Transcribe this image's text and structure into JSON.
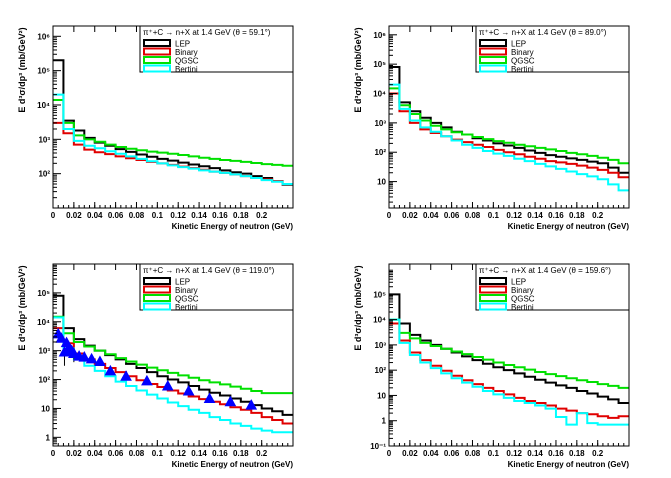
{
  "chart_data": [
    {
      "type": "line",
      "step": true,
      "title": "π⁺+C → n+X at 1.4 GeV (θ = 59.1°)",
      "xlabel": "Kinetic Energy of neutron (GeV)",
      "ylabel": "E d³σ/dp³ (mb/GeV²)",
      "log_y": true,
      "xlim": [
        0,
        0.23
      ],
      "ylim_exp": [
        1,
        6.3
      ],
      "x_ticks": [
        "0",
        "0.02",
        "0.04",
        "0.06",
        "0.08",
        "0.1",
        "0.12",
        "0.14",
        "0.16",
        "0.18",
        "0.2"
      ],
      "x_tick_values": [
        0,
        0.02,
        0.04,
        0.06,
        0.08,
        0.1,
        0.12,
        0.14,
        0.16,
        0.18,
        0.2
      ],
      "y_ticks": [
        "10²",
        "10³",
        "10⁴",
        "10⁵",
        "10⁶"
      ],
      "y_tick_exps": [
        2,
        3,
        4,
        5,
        6
      ],
      "bin_edges": [
        0,
        0.01,
        0.02,
        0.03,
        0.04,
        0.05,
        0.06,
        0.07,
        0.08,
        0.09,
        0.1,
        0.11,
        0.12,
        0.13,
        0.14,
        0.15,
        0.16,
        0.17,
        0.18,
        0.19,
        0.2,
        0.21,
        0.22,
        0.23
      ],
      "series": [
        {
          "name": "LEP",
          "color": "#000000",
          "values": [
            200000,
            3500,
            1800,
            1100,
            800,
            650,
            520,
            430,
            360,
            310,
            270,
            240,
            210,
            185,
            165,
            145,
            125,
            110,
            100,
            85,
            75,
            60,
            48
          ]
        },
        {
          "name": "Binary",
          "color": "#e00000",
          "values": [
            3000,
            1500,
            700,
            500,
            420,
            370,
            320,
            280,
            250,
            220,
            200,
            180,
            160,
            145,
            130,
            115,
            105,
            95,
            85,
            75,
            68,
            60,
            50
          ]
        },
        {
          "name": "QGSC",
          "color": "#00e000",
          "values": [
            14000,
            3000,
            1300,
            1000,
            850,
            700,
            600,
            530,
            480,
            440,
            410,
            380,
            350,
            320,
            290,
            270,
            250,
            235,
            220,
            205,
            190,
            180,
            170
          ]
        },
        {
          "name": "Bertini",
          "color": "#00ffff",
          "values": [
            20000,
            2000,
            900,
            650,
            550,
            450,
            380,
            320,
            270,
            230,
            200,
            175,
            155,
            140,
            125,
            115,
            105,
            95,
            85,
            75,
            65,
            58,
            50
          ]
        }
      ]
    },
    {
      "type": "line",
      "step": true,
      "title": "π⁺+C → n+X at 1.4 GeV (θ = 89.0°)",
      "xlabel": "Kinetic Energy of neutron (GeV)",
      "ylabel": "E d³σ/dp³ (mb/GeV²)",
      "log_y": true,
      "xlim": [
        0,
        0.23
      ],
      "ylim_exp": [
        0.1,
        6.3
      ],
      "x_ticks": [
        "0",
        "0.02",
        "0.04",
        "0.06",
        "0.08",
        "0.1",
        "0.12",
        "0.14",
        "0.16",
        "0.18",
        "0.2"
      ],
      "x_tick_values": [
        0,
        0.02,
        0.04,
        0.06,
        0.08,
        0.1,
        0.12,
        0.14,
        0.16,
        0.18,
        0.2
      ],
      "y_ticks": [
        "10",
        "10²",
        "10³",
        "10⁴",
        "10⁵",
        "10⁶"
      ],
      "y_tick_exps": [
        1,
        2,
        3,
        4,
        5,
        6
      ],
      "bin_edges": [
        0,
        0.01,
        0.02,
        0.03,
        0.04,
        0.05,
        0.06,
        0.07,
        0.08,
        0.09,
        0.1,
        0.11,
        0.12,
        0.13,
        0.14,
        0.15,
        0.16,
        0.17,
        0.18,
        0.19,
        0.2,
        0.21,
        0.22,
        0.23
      ],
      "series": [
        {
          "name": "LEP",
          "color": "#000000",
          "values": [
            80000,
            5000,
            2500,
            1500,
            1000,
            700,
            500,
            400,
            300,
            250,
            200,
            170,
            140,
            115,
            95,
            80,
            70,
            62,
            55,
            48,
            42,
            30,
            20
          ]
        },
        {
          "name": "Binary",
          "color": "#e00000",
          "values": [
            10000,
            2500,
            1000,
            600,
            450,
            350,
            270,
            220,
            180,
            150,
            120,
            100,
            85,
            70,
            60,
            50,
            45,
            40,
            35,
            30,
            25,
            20,
            14
          ]
        },
        {
          "name": "QGSC",
          "color": "#00e000",
          "values": [
            15000,
            4000,
            2000,
            1200,
            800,
            600,
            480,
            400,
            330,
            280,
            240,
            210,
            180,
            160,
            140,
            125,
            110,
            95,
            85,
            75,
            65,
            55,
            42
          ]
        },
        {
          "name": "Bertini",
          "color": "#00ffff",
          "values": [
            20000,
            3000,
            1200,
            700,
            500,
            350,
            250,
            180,
            140,
            110,
            90,
            75,
            60,
            50,
            40,
            33,
            27,
            22,
            18,
            15,
            12,
            8,
            5
          ]
        }
      ]
    },
    {
      "type": "line",
      "step": true,
      "title": "π⁺+C → n+X at 1.4 GeV (θ = 119.0°)",
      "xlabel": "Kinetic Energy of neutron (GeV)",
      "ylabel": "E d³σ/dp³ (mb/GeV²)",
      "log_y": true,
      "xlim": [
        0,
        0.23
      ],
      "ylim_exp": [
        -0.3,
        6.0
      ],
      "x_ticks": [
        "0",
        "0.02",
        "0.04",
        "0.06",
        "0.08",
        "0.1",
        "0.12",
        "0.14",
        "0.16",
        "0.18",
        "0.2"
      ],
      "x_tick_values": [
        0,
        0.02,
        0.04,
        0.06,
        0.08,
        0.1,
        0.12,
        0.14,
        0.16,
        0.18,
        0.2
      ],
      "y_ticks": [
        "1",
        "10",
        "10²",
        "10³",
        "10⁴",
        "10⁵"
      ],
      "y_tick_exps": [
        0,
        1,
        2,
        3,
        4,
        5
      ],
      "bin_edges": [
        0,
        0.01,
        0.02,
        0.03,
        0.04,
        0.05,
        0.06,
        0.07,
        0.08,
        0.09,
        0.1,
        0.11,
        0.12,
        0.13,
        0.14,
        0.15,
        0.16,
        0.17,
        0.18,
        0.19,
        0.2,
        0.21,
        0.22,
        0.23
      ],
      "series": [
        {
          "name": "LEP",
          "color": "#000000",
          "values": [
            80000,
            6000,
            2500,
            1500,
            1000,
            700,
            500,
            350,
            250,
            180,
            130,
            100,
            80,
            60,
            45,
            35,
            28,
            22,
            17,
            13,
            10,
            8,
            6
          ]
        },
        {
          "name": "Binary",
          "color": "#e00000",
          "values": [
            6000,
            1800,
            800,
            500,
            350,
            250,
            180,
            130,
            95,
            70,
            55,
            42,
            33,
            26,
            21,
            17,
            14,
            11,
            9,
            7,
            5,
            4,
            3
          ]
        },
        {
          "name": "QGSC",
          "color": "#00e000",
          "values": [
            15000,
            4000,
            2000,
            1400,
            1000,
            750,
            550,
            420,
            330,
            260,
            210,
            170,
            140,
            115,
            95,
            80,
            68,
            57,
            48,
            40,
            34,
            34,
            34
          ]
        },
        {
          "name": "Bertini",
          "color": "#00ffff",
          "values": [
            14000,
            1200,
            500,
            300,
            200,
            130,
            85,
            60,
            42,
            30,
            22,
            16,
            12,
            9,
            7,
            5,
            4,
            3,
            2.5,
            2,
            1.7,
            1.5,
            1.5
          ]
        }
      ],
      "markers": {
        "shape": "triangle",
        "color": "#0000ff",
        "x": [
          0.005,
          0.008,
          0.011,
          0.013,
          0.015,
          0.018,
          0.02,
          0.025,
          0.03,
          0.037,
          0.045,
          0.055,
          0.07,
          0.09,
          0.11,
          0.13,
          0.15,
          0.17,
          0.19
        ],
        "y": [
          3800,
          2700,
          900,
          1900,
          1200,
          1000,
          800,
          650,
          600,
          520,
          420,
          200,
          130,
          90,
          60,
          40,
          22,
          17,
          13
        ],
        "err_low": [
          null,
          null,
          300,
          null,
          null,
          null,
          400,
          null,
          null,
          null,
          null,
          null,
          null,
          null,
          null,
          null,
          null,
          null,
          null
        ],
        "err_high": [
          null,
          null,
          2000,
          null,
          null,
          null,
          null,
          null,
          null,
          null,
          null,
          null,
          null,
          null,
          null,
          null,
          null,
          null,
          null
        ]
      }
    },
    {
      "type": "line",
      "step": true,
      "title": "π⁺+C → n+X at 1.4 GeV (θ = 159.6°)",
      "xlabel": "Kinetic Energy of neutron (GeV)",
      "ylabel": "E d³σ/dp³ (mb/GeV²)",
      "log_y": true,
      "xlim": [
        0,
        0.23
      ],
      "ylim_exp": [
        -1,
        6.2
      ],
      "x_ticks": [
        "0",
        "0.02",
        "0.04",
        "0.06",
        "0.08",
        "0.1",
        "0.12",
        "0.14",
        "0.16",
        "0.18",
        "0.2"
      ],
      "x_tick_values": [
        0,
        0.02,
        0.04,
        0.06,
        0.08,
        0.1,
        0.12,
        0.14,
        0.16,
        0.18,
        0.2
      ],
      "y_ticks": [
        "10⁻¹",
        "1",
        "10",
        "10²",
        "10³",
        "10⁴",
        "10⁵"
      ],
      "y_tick_exps": [
        -1,
        0,
        1,
        2,
        3,
        4,
        5
      ],
      "bin_edges": [
        0,
        0.01,
        0.02,
        0.03,
        0.04,
        0.05,
        0.06,
        0.07,
        0.08,
        0.09,
        0.1,
        0.11,
        0.12,
        0.13,
        0.14,
        0.15,
        0.16,
        0.17,
        0.18,
        0.19,
        0.2,
        0.21,
        0.22,
        0.23
      ],
      "series": [
        {
          "name": "LEP",
          "color": "#000000",
          "values": [
            100000,
            7000,
            2500,
            1500,
            1000,
            700,
            500,
            350,
            250,
            180,
            130,
            100,
            75,
            55,
            42,
            32,
            25,
            20,
            15,
            12,
            9,
            7,
            5
          ]
        },
        {
          "name": "Binary",
          "color": "#e00000",
          "values": [
            7000,
            1500,
            500,
            250,
            150,
            95,
            60,
            40,
            28,
            20,
            15,
            11,
            8,
            6,
            5,
            4,
            3,
            2.5,
            2,
            1.8,
            1.5,
            1.3,
            1.5
          ]
        },
        {
          "name": "QGSC",
          "color": "#00e000",
          "values": [
            10000,
            3000,
            1800,
            1200,
            900,
            700,
            550,
            430,
            330,
            260,
            200,
            160,
            130,
            105,
            85,
            70,
            58,
            48,
            40,
            34,
            28,
            24,
            20
          ]
        },
        {
          "name": "Bertini",
          "color": "#00ffff",
          "values": [
            10000,
            1200,
            400,
            200,
            120,
            75,
            48,
            32,
            22,
            15,
            11,
            8,
            6,
            5,
            4,
            3,
            1.4,
            0.7,
            2,
            0.8,
            0.7,
            0.7,
            0.7
          ]
        }
      ]
    }
  ]
}
